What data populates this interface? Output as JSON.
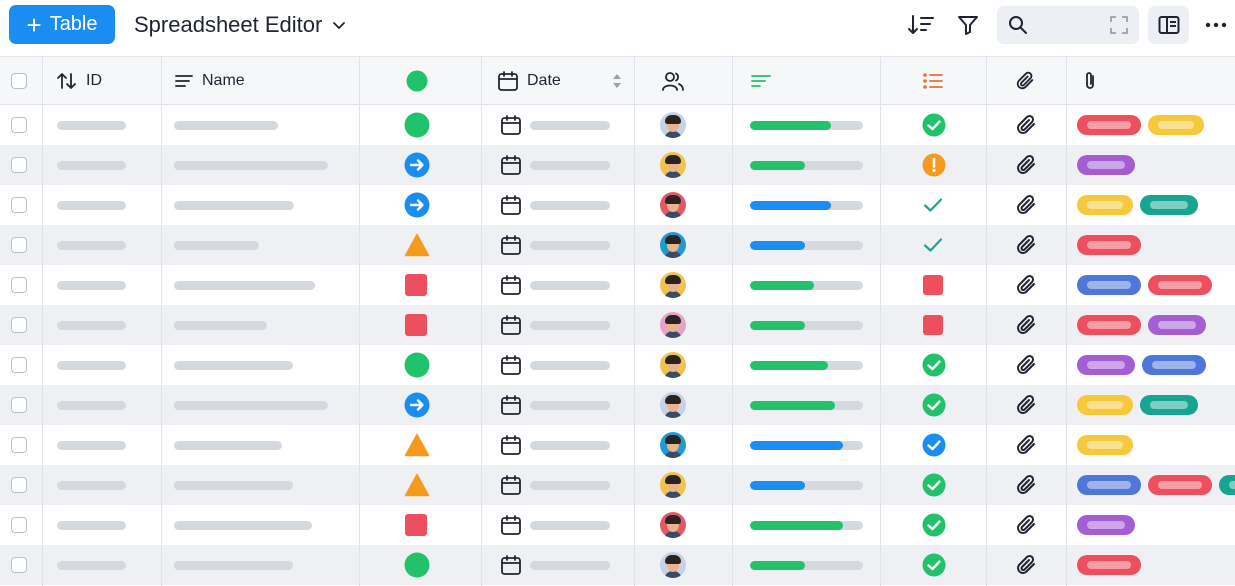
{
  "toolbar": {
    "add_label": "Table",
    "title": "Spreadsheet Editor"
  },
  "columns": {
    "id": "ID",
    "name": "Name",
    "date": "Date"
  },
  "colors": {
    "accent": "#1a8ef0",
    "green": "#21c26a",
    "blue": "#1a8ef0",
    "orange": "#f59a1e",
    "red": "#ee4f5e",
    "purple": "#a35ed4",
    "yellow": "#f6c83a",
    "teal": "#17a592",
    "indigo": "#4f76d9"
  },
  "rows": [
    {
      "status": "circle-green",
      "name_w": 104,
      "date_w": 80,
      "avatar": "#c6d3e4",
      "progress": 0.72,
      "progress_color": "green",
      "check": "check-circle-green",
      "tags": [
        "red",
        "yellow"
      ]
    },
    {
      "status": "arrow-blue",
      "name_w": 154,
      "date_w": 80,
      "avatar": "#f2c14e",
      "progress": 0.49,
      "progress_color": "green",
      "check": "exclaim-orange",
      "tags": [
        "purple"
      ]
    },
    {
      "status": "arrow-blue",
      "name_w": 120,
      "date_w": 80,
      "avatar": "#e15a66",
      "progress": 0.72,
      "progress_color": "blue",
      "check": "check-plain",
      "tags": [
        "yellow",
        "teal"
      ]
    },
    {
      "status": "triangle-orange",
      "name_w": 85,
      "date_w": 80,
      "avatar": "#1e9bd1",
      "progress": 0.49,
      "progress_color": "blue",
      "check": "check-plain",
      "tags": [
        "red"
      ]
    },
    {
      "status": "square-red",
      "name_w": 141,
      "date_w": 80,
      "avatar": "#f2c14e",
      "progress": 0.57,
      "progress_color": "green",
      "check": "square-red",
      "tags": [
        "indigo",
        "red"
      ]
    },
    {
      "status": "square-red",
      "name_w": 93,
      "date_w": 80,
      "avatar": "#e7a2c6",
      "progress": 0.49,
      "progress_color": "green",
      "check": "square-red",
      "tags": [
        "red",
        "purple"
      ]
    },
    {
      "status": "circle-green",
      "name_w": 119,
      "date_w": 80,
      "avatar": "#f2c14e",
      "progress": 0.69,
      "progress_color": "green",
      "check": "check-circle-green",
      "tags": [
        "purple",
        "indigo"
      ]
    },
    {
      "status": "arrow-blue",
      "name_w": 154,
      "date_w": 80,
      "avatar": "#c6d3e4",
      "progress": 0.75,
      "progress_color": "green",
      "check": "check-circle-green",
      "tags": [
        "yellow",
        "teal"
      ]
    },
    {
      "status": "triangle-orange",
      "name_w": 108,
      "date_w": 80,
      "avatar": "#1e9bd1",
      "progress": 0.82,
      "progress_color": "blue",
      "check": "check-circle-blue",
      "tags": [
        "yellow"
      ]
    },
    {
      "status": "triangle-orange",
      "name_w": 119,
      "date_w": 80,
      "avatar": "#f2c14e",
      "progress": 0.49,
      "progress_color": "blue",
      "check": "check-circle-green",
      "tags": [
        "indigo",
        "red",
        "teal"
      ]
    },
    {
      "status": "square-red",
      "name_w": 138,
      "date_w": 80,
      "avatar": "#e15a66",
      "progress": 0.82,
      "progress_color": "green",
      "check": "check-circle-green",
      "tags": [
        "purple"
      ]
    },
    {
      "status": "circle-green",
      "name_w": 119,
      "date_w": 80,
      "avatar": "#c6d3e4",
      "progress": 0.49,
      "progress_color": "green",
      "check": "check-circle-green",
      "tags": [
        "red"
      ]
    }
  ]
}
